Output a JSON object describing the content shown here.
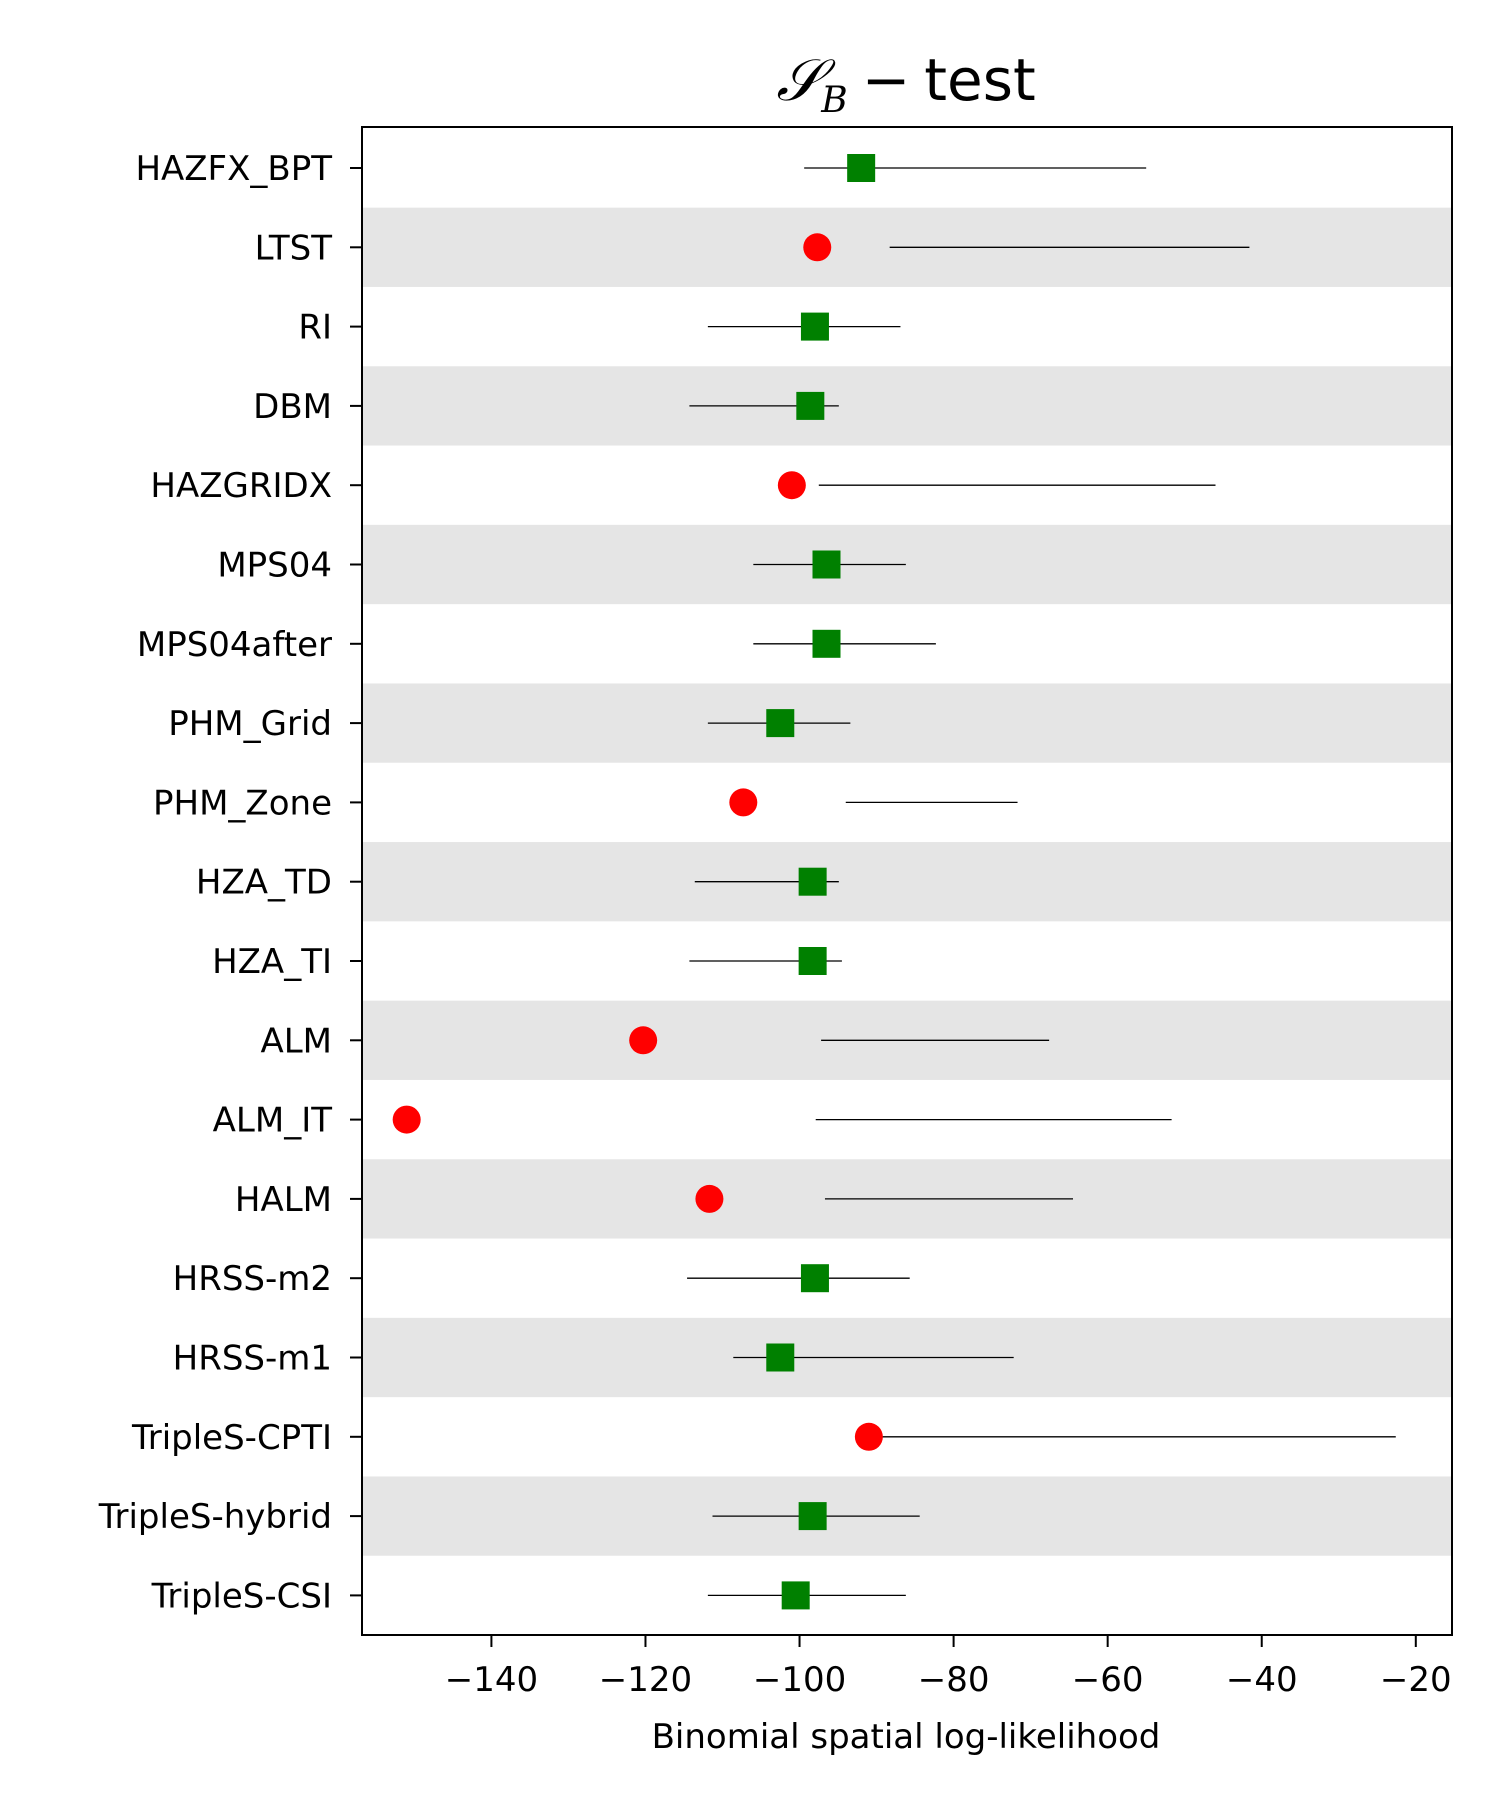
{
  "chart_data": {
    "type": "scatter",
    "title": {
      "symbol": "𝒮",
      "subscript": "B",
      "operator": "−",
      "text": "test"
    },
    "xlabel": "Binomial spatial log-likelihood",
    "ylabel": "",
    "xlim": [
      -156.8,
      -15.3
    ],
    "xticks": [
      -140,
      -120,
      -100,
      -80,
      -60,
      -40,
      -20
    ],
    "xtick_labels": [
      "−140",
      "−120",
      "−100",
      "−80",
      "−60",
      "−40",
      "−20"
    ],
    "grid": false,
    "band_color": "#e5e5e5",
    "pass_color": "#008000",
    "fail_color": "#ff0000",
    "legend": "none",
    "rows": [
      {
        "label": "HAZFX_BPT",
        "value": -92.0,
        "low": -99.4,
        "high": -55.0,
        "status": "pass"
      },
      {
        "label": "LTST",
        "value": -97.7,
        "low": -88.3,
        "high": -41.6,
        "status": "fail"
      },
      {
        "label": "RI",
        "value": -98.0,
        "low": -111.9,
        "high": -86.9,
        "status": "pass"
      },
      {
        "label": "DBM",
        "value": -98.6,
        "low": -114.3,
        "high": -94.9,
        "status": "pass"
      },
      {
        "label": "HAZGRIDX",
        "value": -101.0,
        "low": -97.5,
        "high": -46.0,
        "status": "fail"
      },
      {
        "label": "MPS04",
        "value": -96.5,
        "low": -106.0,
        "high": -86.2,
        "status": "pass"
      },
      {
        "label": "MPS04after",
        "value": -96.5,
        "low": -106.0,
        "high": -82.3,
        "status": "pass"
      },
      {
        "label": "PHM_Grid",
        "value": -102.5,
        "low": -111.9,
        "high": -93.4,
        "status": "pass"
      },
      {
        "label": "PHM_Zone",
        "value": -107.3,
        "low": -94.0,
        "high": -71.7,
        "status": "fail"
      },
      {
        "label": "HZA_TD",
        "value": -98.3,
        "low": -113.6,
        "high": -94.9,
        "status": "pass"
      },
      {
        "label": "HZA_TI",
        "value": -98.3,
        "low": -114.3,
        "high": -94.5,
        "status": "pass"
      },
      {
        "label": "ALM",
        "value": -120.3,
        "low": -97.2,
        "high": -67.6,
        "status": "fail"
      },
      {
        "label": "ALM_IT",
        "value": -151.0,
        "low": -97.9,
        "high": -51.7,
        "status": "fail"
      },
      {
        "label": "HALM",
        "value": -111.7,
        "low": -96.7,
        "high": -64.5,
        "status": "fail"
      },
      {
        "label": "HRSS-m2",
        "value": -98.0,
        "low": -114.6,
        "high": -85.7,
        "status": "pass"
      },
      {
        "label": "HRSS-m1",
        "value": -102.5,
        "low": -108.6,
        "high": -72.2,
        "status": "pass"
      },
      {
        "label": "TripleS-CPTI",
        "value": -91.0,
        "low": -90.5,
        "high": -22.6,
        "status": "fail"
      },
      {
        "label": "TripleS-hybrid",
        "value": -98.3,
        "low": -111.3,
        "high": -84.4,
        "status": "pass"
      },
      {
        "label": "TripleS-CSI",
        "value": -100.5,
        "low": -111.9,
        "high": -86.2,
        "status": "pass"
      }
    ]
  }
}
